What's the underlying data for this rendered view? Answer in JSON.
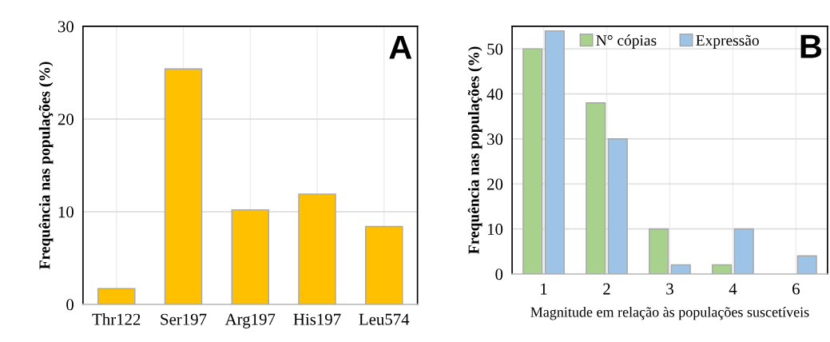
{
  "chart_data": [
    {
      "type": "bar",
      "ylabel": "Frequência nas populações (%)",
      "categories": [
        "Thr122",
        "Ser197",
        "Arg197",
        "His197",
        "Leu574"
      ],
      "values": [
        1.7,
        25.4,
        10.2,
        11.9,
        8.4
      ],
      "color": "#ffc000",
      "ylim": [
        0,
        30
      ],
      "yticks": [
        0,
        10,
        20,
        30
      ],
      "grid": true,
      "annotations": [
        "A"
      ]
    },
    {
      "type": "bar",
      "ylabel": "Frequência nas populações (%)",
      "xlabel": "Magnitude em relação às populações suscetíveis",
      "categories": [
        "1",
        "2",
        "3",
        "4",
        "6"
      ],
      "series": [
        {
          "name": "N° cópias",
          "color": "#a9d18e",
          "values": [
            50,
            38,
            10,
            2,
            null
          ]
        },
        {
          "name": "Expressão",
          "color": "#9dc3e6",
          "values": [
            54,
            30,
            2,
            10,
            4
          ]
        }
      ],
      "ylim": [
        0,
        55
      ],
      "yticks": [
        0,
        10,
        20,
        30,
        40,
        50
      ],
      "grid": true,
      "legend": "top",
      "annotations": [
        "B"
      ]
    }
  ]
}
